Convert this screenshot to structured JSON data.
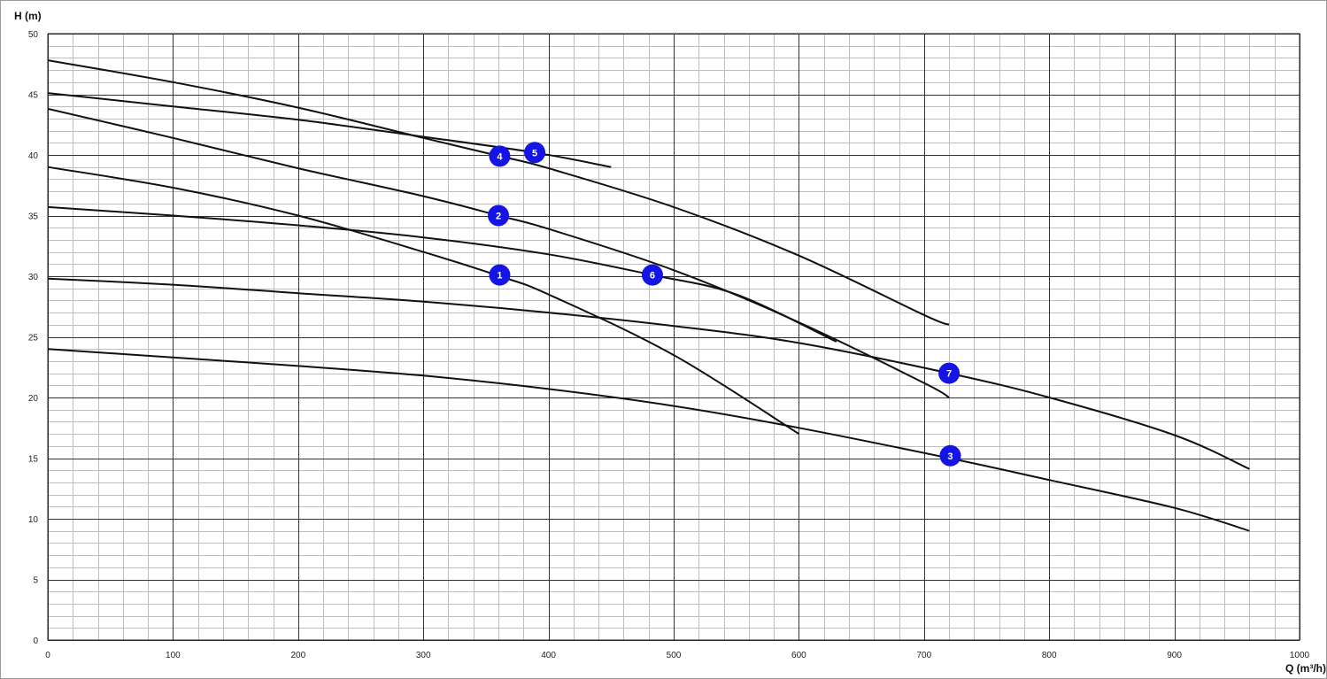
{
  "chart_data": {
    "type": "line",
    "title": "",
    "xlabel": "Q (m³/h)",
    "ylabel": "H (m)",
    "xlim": [
      0,
      1000
    ],
    "ylim": [
      0,
      50
    ],
    "x_ticks": [
      0,
      100,
      200,
      300,
      400,
      500,
      600,
      700,
      800,
      900,
      1000
    ],
    "y_ticks": [
      0,
      5,
      10,
      15,
      20,
      25,
      30,
      35,
      40,
      45,
      50
    ],
    "x_minor_step": 20,
    "y_minor_step": 1,
    "grid": true,
    "legend": "none",
    "colors": {
      "curve": "#111111",
      "marker": "#1414e6",
      "marker_text": "#ffffff",
      "major_grid": "#333333",
      "minor_grid": "#bdbdbd"
    },
    "series": [
      {
        "label": "1",
        "label_at": [
          361,
          30.1
        ],
        "points": [
          [
            0,
            39
          ],
          [
            100,
            37.3
          ],
          [
            200,
            35
          ],
          [
            300,
            32
          ],
          [
            361,
            30
          ],
          [
            400,
            28.5
          ],
          [
            500,
            23.5
          ],
          [
            600,
            17
          ]
        ]
      },
      {
        "label": "2",
        "label_at": [
          360,
          35
        ],
        "points": [
          [
            0,
            43.8
          ],
          [
            100,
            41.4
          ],
          [
            200,
            38.9
          ],
          [
            300,
            36.6
          ],
          [
            360,
            35
          ],
          [
            400,
            33.9
          ],
          [
            500,
            30.5
          ],
          [
            600,
            26.2
          ],
          [
            700,
            21.2
          ],
          [
            720,
            20
          ]
        ]
      },
      {
        "label": "3",
        "label_at": [
          721,
          15.2
        ],
        "points": [
          [
            0,
            24
          ],
          [
            100,
            23.3
          ],
          [
            200,
            22.6
          ],
          [
            300,
            21.8
          ],
          [
            400,
            20.7
          ],
          [
            500,
            19.3
          ],
          [
            600,
            17.5
          ],
          [
            720,
            15
          ],
          [
            800,
            13.2
          ],
          [
            900,
            10.9
          ],
          [
            960,
            9
          ]
        ]
      },
      {
        "label": "4",
        "label_at": [
          361,
          39.9
        ],
        "points": [
          [
            0,
            47.8
          ],
          [
            100,
            46
          ],
          [
            200,
            43.9
          ],
          [
            300,
            41.4
          ],
          [
            361,
            39.9
          ],
          [
            400,
            38.9
          ],
          [
            500,
            35.7
          ],
          [
            600,
            31.7
          ],
          [
            700,
            26.8
          ],
          [
            720,
            26
          ]
        ]
      },
      {
        "label": "5",
        "label_at": [
          389,
          40.2
        ],
        "points": [
          [
            0,
            45.1
          ],
          [
            100,
            44
          ],
          [
            200,
            42.9
          ],
          [
            300,
            41.5
          ],
          [
            389,
            40.2
          ],
          [
            450,
            39
          ]
        ]
      },
      {
        "label": "6",
        "label_at": [
          483,
          30.1
        ],
        "points": [
          [
            0,
            35.7
          ],
          [
            100,
            35
          ],
          [
            200,
            34.2
          ],
          [
            300,
            33.2
          ],
          [
            400,
            31.8
          ],
          [
            483,
            30.1
          ],
          [
            550,
            28.5
          ],
          [
            630,
            24.6
          ]
        ]
      },
      {
        "label": "7",
        "label_at": [
          720,
          22
        ],
        "points": [
          [
            0,
            29.8
          ],
          [
            100,
            29.3
          ],
          [
            200,
            28.6
          ],
          [
            300,
            27.9
          ],
          [
            400,
            27
          ],
          [
            500,
            25.9
          ],
          [
            600,
            24.5
          ],
          [
            720,
            22
          ],
          [
            800,
            20
          ],
          [
            900,
            16.9
          ],
          [
            960,
            14.1
          ]
        ]
      }
    ]
  }
}
